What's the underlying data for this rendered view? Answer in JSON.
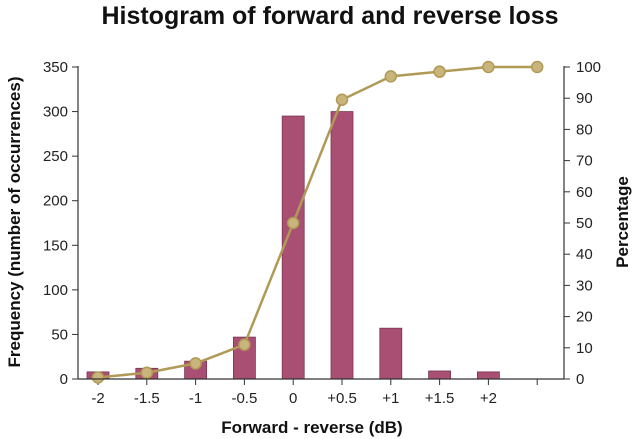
{
  "chart_data": {
    "type": "bar+line",
    "title": "Histogram of forward and reverse loss",
    "xlabel": "Forward - reverse (dB)",
    "ylabel_left": "Frequency (number of occurrences)",
    "ylabel_right": "Percentage",
    "categories": [
      "-2",
      "-1.5",
      "-1",
      "-0.5",
      "0",
      "+0.5",
      "+1",
      "+1.5",
      "+2"
    ],
    "bar_series": {
      "values": [
        8,
        12,
        20,
        47,
        295,
        300,
        57,
        9,
        8
      ],
      "color": "#a94f74"
    },
    "line_series": {
      "x": [
        -2,
        -1.5,
        -1,
        -0.5,
        0,
        0.5,
        1,
        1.5,
        2,
        2.5
      ],
      "values": [
        0.5,
        2,
        5,
        11,
        50,
        89.5,
        97,
        98.5,
        100,
        100
      ],
      "line_color": "#b09a55",
      "marker_color": "#c9b57c"
    },
    "left_axis": {
      "ylim": [
        0,
        350
      ],
      "ticks": [
        0,
        50,
        100,
        150,
        200,
        250,
        300,
        350
      ]
    },
    "right_axis": {
      "ylim": [
        0,
        100
      ],
      "ticks": [
        0,
        10,
        20,
        30,
        40,
        50,
        60,
        70,
        80,
        90,
        100
      ]
    },
    "grid": false,
    "legend": "none"
  }
}
